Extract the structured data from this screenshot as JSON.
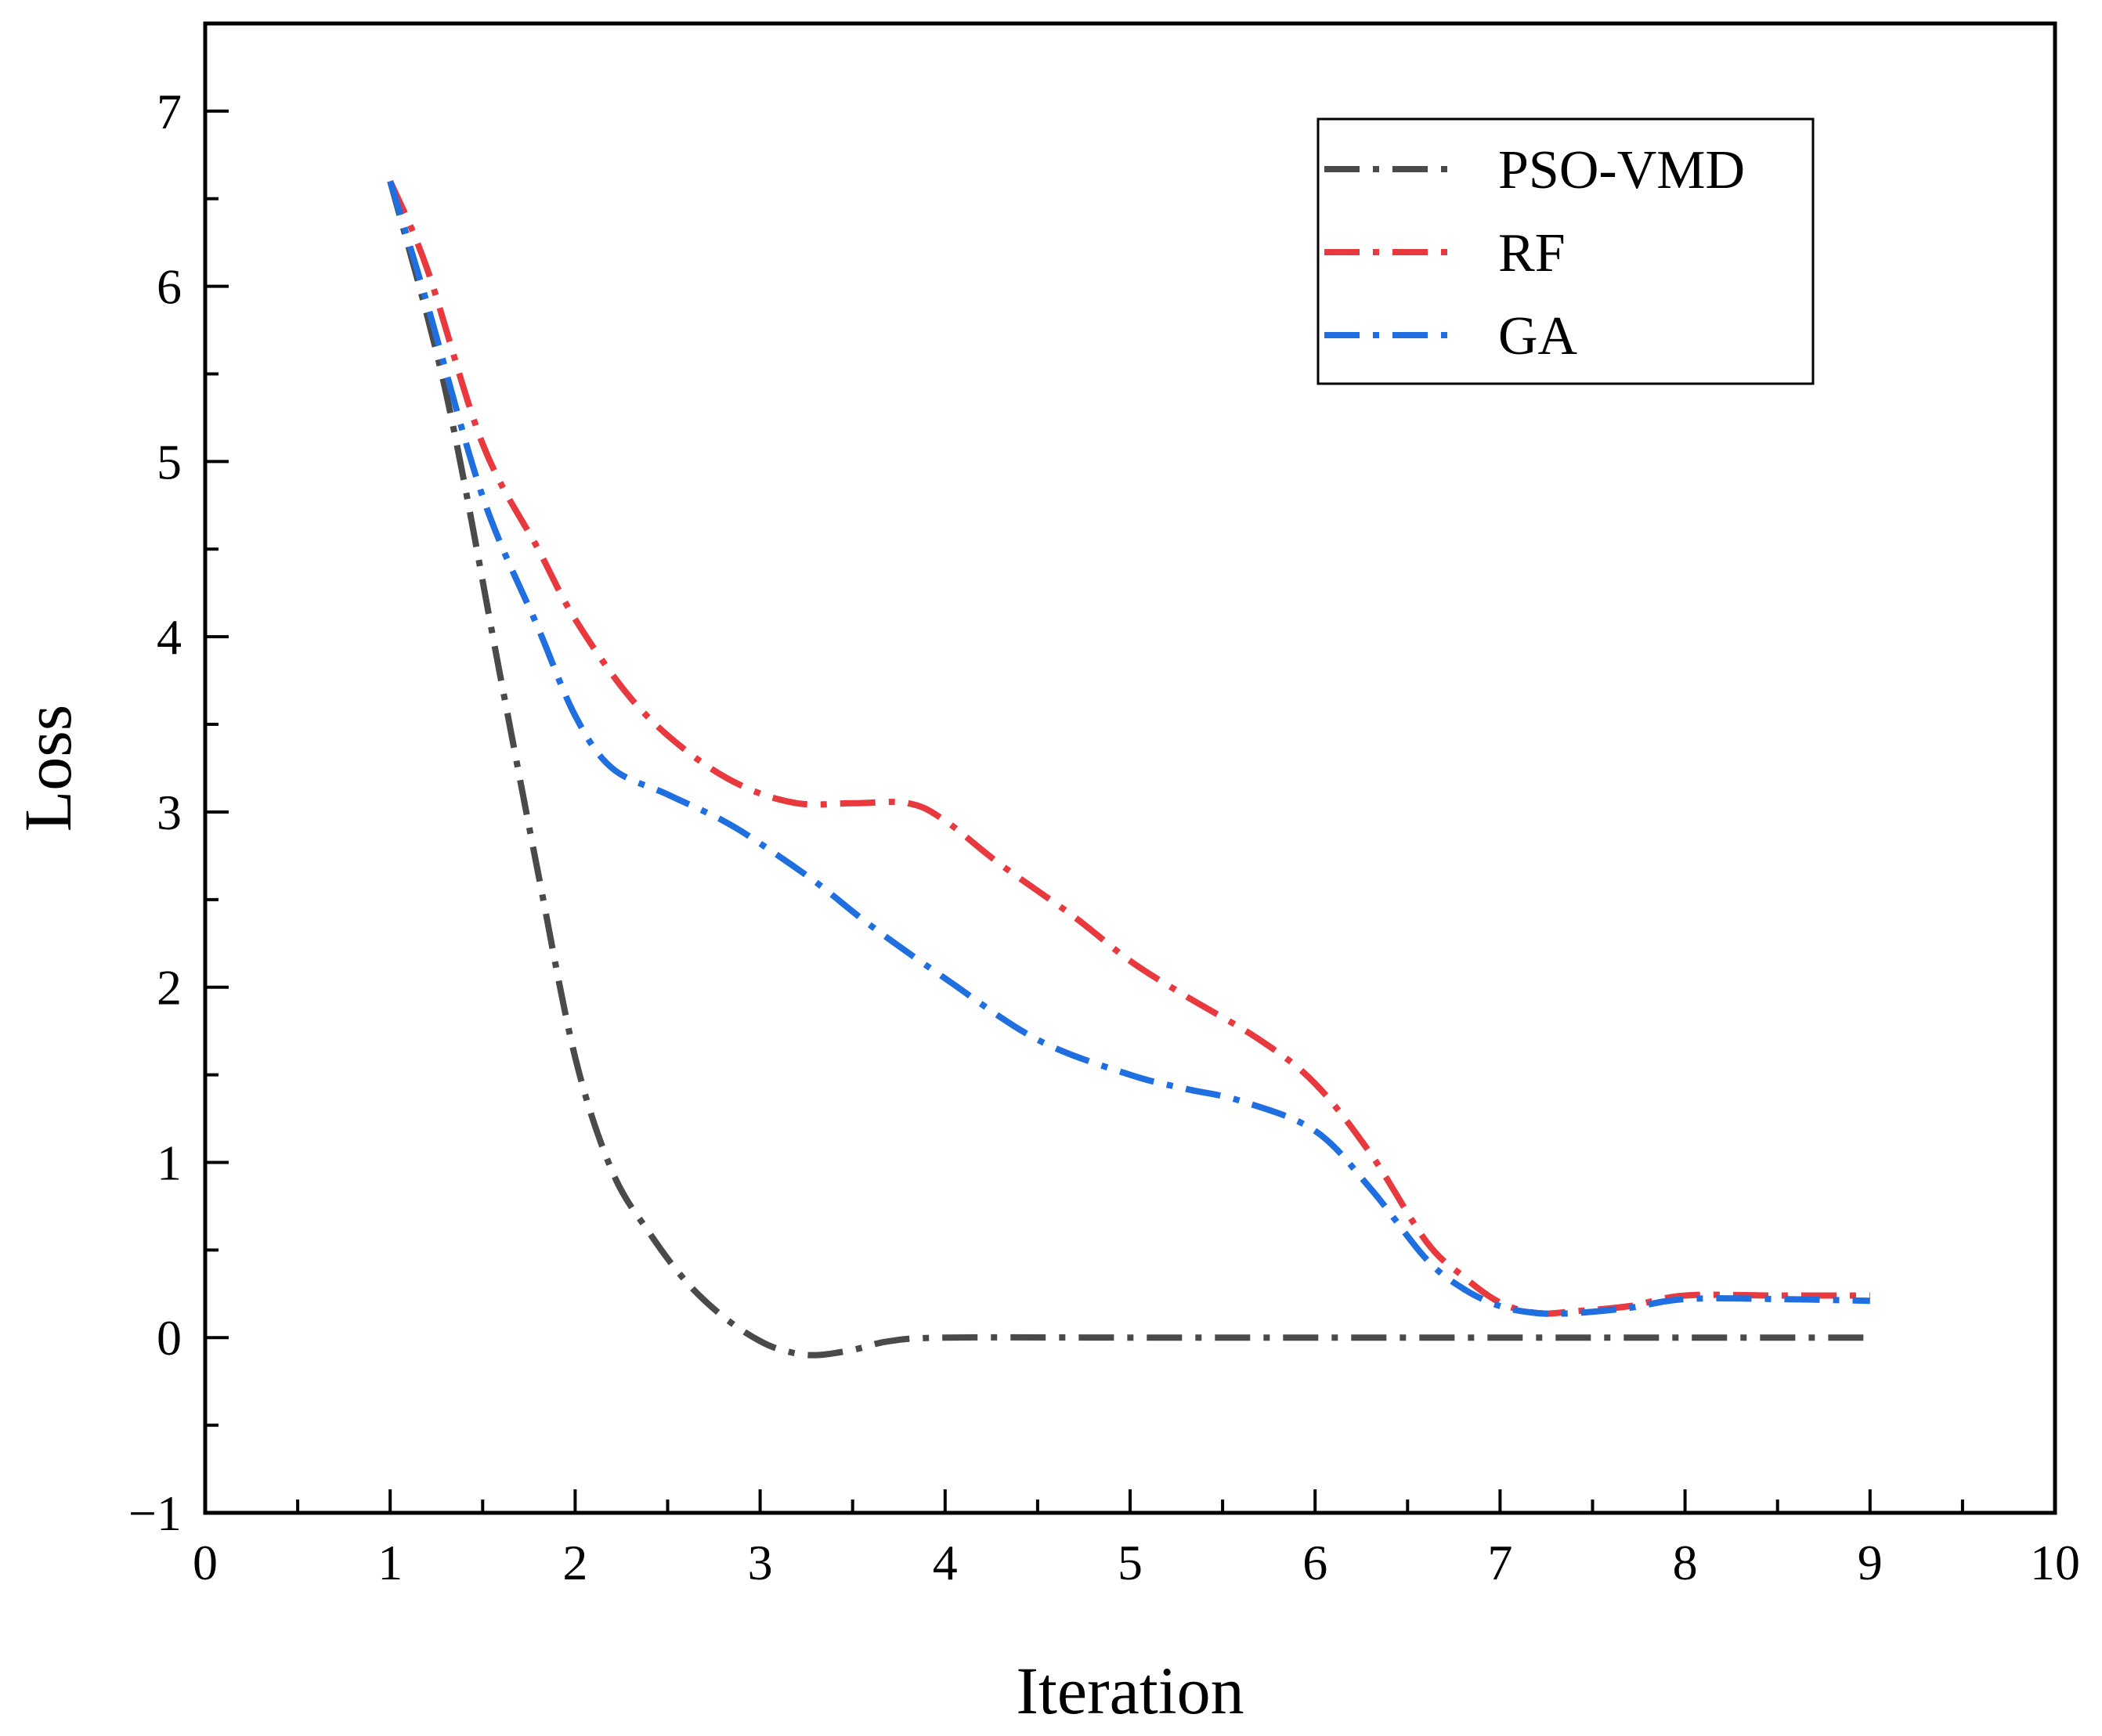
{
  "chart_data": {
    "type": "line",
    "title": "",
    "xlabel": "Iteration",
    "ylabel": "Loss",
    "xlim": [
      0,
      10
    ],
    "ylim": [
      -1,
      7.5
    ],
    "xticks": [
      0,
      1,
      2,
      3,
      4,
      5,
      6,
      7,
      8,
      9,
      10
    ],
    "yticks": [
      -1,
      0,
      1,
      2,
      3,
      4,
      5,
      6,
      7
    ],
    "xtick_labels": [
      "0",
      "1",
      "2",
      "3",
      "4",
      "5",
      "6",
      "7",
      "8",
      "9",
      "10"
    ],
    "ytick_labels": [
      "−1",
      "0",
      "1",
      "2",
      "3",
      "4",
      "5",
      "6",
      "7"
    ],
    "grid": false,
    "legend_position": "top-right",
    "series": [
      {
        "name": "PSO-VMD",
        "color": "#4a4a4a",
        "line_style": "dash-dot",
        "x": [
          1,
          1.3,
          1.6,
          1.8,
          2,
          2.2,
          2.4,
          2.6,
          2.8,
          3,
          3.15,
          3.3,
          3.5,
          3.7,
          4,
          5,
          6,
          7,
          8,
          9
        ],
        "y": [
          6.6,
          5.4,
          3.75,
          2.65,
          1.6,
          0.95,
          0.6,
          0.32,
          0.12,
          -0.02,
          -0.08,
          -0.1,
          -0.07,
          -0.02,
          0,
          0,
          0,
          0,
          0,
          0
        ]
      },
      {
        "name": "RF",
        "color": "#e8393f",
        "line_style": "dash-dot",
        "x": [
          1,
          1.2,
          1.5,
          1.8,
          2,
          2.3,
          2.6,
          2.9,
          3.2,
          3.5,
          3.8,
          4,
          4.3,
          4.7,
          5,
          5.3,
          5.7,
          6,
          6.3,
          6.6,
          6.8,
          7,
          7.2,
          7.4,
          7.7,
          8,
          8.5,
          9
        ],
        "y": [
          6.6,
          6.1,
          5.1,
          4.5,
          4.1,
          3.65,
          3.35,
          3.15,
          3.05,
          3.05,
          3.05,
          2.95,
          2.7,
          2.4,
          2.15,
          1.95,
          1.7,
          1.45,
          1.05,
          0.55,
          0.35,
          0.2,
          0.14,
          0.15,
          0.18,
          0.24,
          0.24,
          0.24
        ]
      },
      {
        "name": "GA",
        "color": "#1f6fe0",
        "line_style": "dash-dot",
        "x": [
          1,
          1.2,
          1.5,
          1.8,
          2,
          2.2,
          2.5,
          2.8,
          3,
          3.3,
          3.6,
          4,
          4.5,
          5,
          5.3,
          5.6,
          6,
          6.3,
          6.6,
          6.8,
          7,
          7.2,
          7.4,
          7.7,
          8,
          8.5,
          9
        ],
        "y": [
          6.6,
          5.9,
          4.8,
          4.05,
          3.55,
          3.25,
          3.1,
          2.95,
          2.82,
          2.6,
          2.35,
          2.05,
          1.7,
          1.5,
          1.42,
          1.35,
          1.18,
          0.85,
          0.45,
          0.28,
          0.18,
          0.14,
          0.14,
          0.17,
          0.22,
          0.22,
          0.21
        ]
      }
    ]
  }
}
